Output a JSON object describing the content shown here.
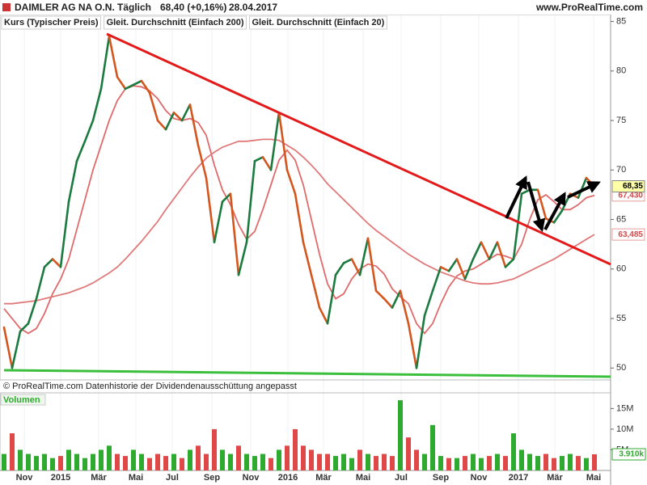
{
  "header": {
    "title": "DAIMLER AG NA O.N.",
    "interval": "Täglich",
    "last": "68,40 (+0,16%)",
    "date": "28.04.2017",
    "site": "www.ProRealTime.com"
  },
  "footnote": "© ProRealTime.com  Datenhistorie der Dividendenausschüttung angepasst",
  "x_labels": [
    "Nov",
    "2015",
    "Mär",
    "Mai",
    "Jul",
    "Sep",
    "Nov",
    "2016",
    "Mär",
    "Mai",
    "Jul",
    "Sep",
    "Nov",
    "2017",
    "Mär",
    "Mai"
  ],
  "chart_data": [
    {
      "type": "line",
      "ylim": [
        48.8,
        85.7
      ],
      "yticks": [
        50,
        55,
        60,
        65,
        70,
        75,
        80,
        85
      ],
      "series": [
        {
          "name": "Kurs (Typischer Preis)",
          "color": "#1b7a3e",
          "down_color": "#d4561e",
          "values": [
            54.1,
            50,
            53.7,
            54.5,
            57,
            60.2,
            61,
            60.2,
            66.8,
            70.9,
            72.9,
            75,
            78.2,
            83.5,
            79.4,
            78.2,
            78.6,
            79,
            77.8,
            75,
            74.1,
            75.8,
            75,
            76.6,
            72.5,
            69.2,
            62.7,
            66.8,
            67.6,
            59.4,
            62.7,
            70.9,
            71.3,
            70,
            75.8,
            70,
            67.6,
            62.7,
            59.4,
            56.1,
            54.5,
            59.4,
            60.6,
            61,
            59.4,
            63.1,
            57.8,
            57,
            56.1,
            57.8,
            54.5,
            50,
            55.3,
            57.8,
            60.2,
            59.8,
            61,
            59,
            61,
            62.7,
            61,
            62.7,
            60.2,
            61,
            67.6,
            68,
            68,
            65.1,
            64.7,
            65.9,
            67.6,
            67.2,
            69.2,
            68.35
          ],
          "last_label": {
            "value": 68.35,
            "label": "68,35"
          }
        },
        {
          "name": "Gleit. Durchschnitt (Einfach 200)",
          "color": "#e07a7a",
          "values": [
            56.5,
            56.5,
            56.6,
            56.7,
            56.8,
            57,
            57.2,
            57.4,
            57.6,
            57.9,
            58.2,
            58.6,
            59.1,
            59.6,
            60.2,
            61,
            61.9,
            62.8,
            63.8,
            64.8,
            66,
            67.1,
            68.2,
            69.3,
            70.3,
            71.2,
            71.8,
            72.3,
            72.6,
            72.9,
            72.9,
            73,
            73.1,
            73.1,
            73,
            72.5,
            72,
            71.3,
            70.5,
            69.6,
            68.6,
            67.8,
            67,
            66.2,
            65.4,
            64.6,
            63.9,
            63.3,
            62.7,
            62.1,
            61.5,
            61,
            60.5,
            60.1,
            59.7,
            59.4,
            59.1,
            58.8,
            58.6,
            58.5,
            58.5,
            58.6,
            58.8,
            59,
            59.4,
            59.8,
            60.2,
            60.6,
            61,
            61.5,
            62,
            62.5,
            63,
            63.485
          ],
          "last_label": {
            "value": 63.485,
            "label": "63,485"
          }
        },
        {
          "name": "Gleit. Durchschnitt (Einfach 20)",
          "color": "#e06a6a",
          "values": [
            56,
            55,
            54,
            53.5,
            54,
            55.5,
            57.5,
            59,
            61,
            64,
            67,
            70,
            72.5,
            75,
            77,
            78.2,
            78.5,
            78.4,
            78,
            77.2,
            76,
            75.2,
            75,
            75.2,
            74.8,
            73.5,
            70.5,
            68,
            66.5,
            64.5,
            63,
            63.8,
            66,
            68.5,
            71,
            72,
            71,
            68.5,
            65,
            61.5,
            58.5,
            57,
            57.5,
            59,
            60,
            60.5,
            60.3,
            59.5,
            58,
            57.2,
            56.5,
            54.5,
            53.5,
            54.5,
            56.5,
            58.2,
            59.3,
            59.8,
            60,
            60.5,
            61,
            61.5,
            61.3,
            61,
            62.5,
            65,
            67,
            67.5,
            66.8,
            66,
            66,
            66.5,
            67.2,
            67.43
          ],
          "last_label": {
            "value": 67.43,
            "label": "67,430"
          }
        }
      ]
    },
    {
      "type": "bar",
      "title": "Volumen",
      "ylim": [
        0,
        18400000
      ],
      "color": "#2eaa2e",
      "down_color": "#e04848",
      "yticks": [
        {
          "value": 5000000,
          "label": "5M"
        },
        {
          "value": 10000000,
          "label": "10M"
        },
        {
          "value": 15000000,
          "label": "15M"
        }
      ],
      "values": [
        4000000,
        9000000,
        5000000,
        4000000,
        3500000,
        4000000,
        3000000,
        3500000,
        5000000,
        4000000,
        3000000,
        4000000,
        5000000,
        6000000,
        4000000,
        3500000,
        5000000,
        4000000,
        3000000,
        4000000,
        3500000,
        4000000,
        3000000,
        5000000,
        6000000,
        4000000,
        10000000,
        5000000,
        4000000,
        6000000,
        4000000,
        3500000,
        4000000,
        3000000,
        5000000,
        6000000,
        10000000,
        6000000,
        5000000,
        4000000,
        4000000,
        3500000,
        4000000,
        3000000,
        5000000,
        4000000,
        3500000,
        4000000,
        3500000,
        17000000,
        8000000,
        5000000,
        4000000,
        11000000,
        3500000,
        3000000,
        3000000,
        3500000,
        4000000,
        3000000,
        3500000,
        4000000,
        3500000,
        9000000,
        5000000,
        4000000,
        3500000,
        4000000,
        3000000,
        3500000,
        4000000,
        3500000,
        3000000,
        3910000
      ],
      "last_label": {
        "value": 3910000,
        "label": "3.910k"
      }
    }
  ]
}
